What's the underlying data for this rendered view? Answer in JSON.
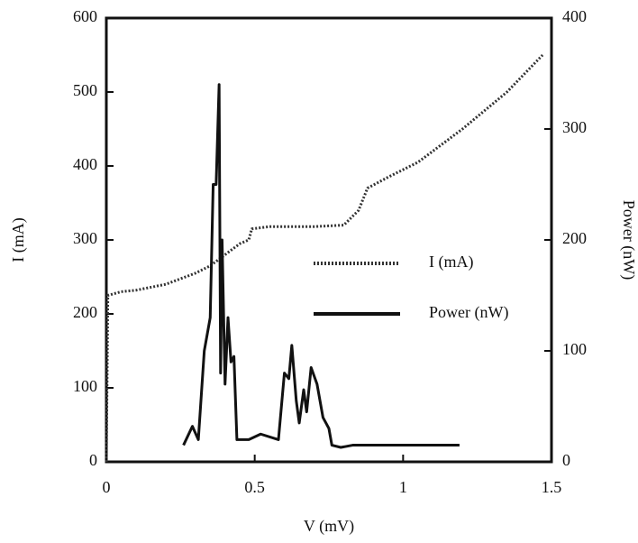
{
  "chart_data": {
    "type": "line",
    "xlabel": "V (mV)",
    "ylabel": "I (mA)",
    "y2label": "Power (nW)",
    "xlim": [
      0,
      1.5
    ],
    "xticks": [
      0,
      0.5,
      1,
      1.5
    ],
    "ylim": [
      0,
      600
    ],
    "yticks": [
      0,
      100,
      200,
      300,
      400,
      500,
      600
    ],
    "y2lim": [
      0,
      400
    ],
    "y2ticks": [
      0,
      100,
      200,
      300,
      400
    ],
    "legend": "center right",
    "series": [
      {
        "name": "I (mA)",
        "color": "#333333",
        "style": "dotted",
        "x": [
          0,
          0.005,
          0.05,
          0.1,
          0.2,
          0.3,
          0.35,
          0.4,
          0.45,
          0.48,
          0.49,
          0.55,
          0.7,
          0.8,
          0.85,
          0.88,
          0.95,
          1.05,
          1.2,
          1.35,
          1.47
        ],
        "values": [
          0,
          225,
          230,
          232,
          240,
          255,
          265,
          280,
          295,
          300,
          315,
          318,
          318,
          320,
          340,
          370,
          385,
          405,
          450,
          500,
          550
        ]
      },
      {
        "name": "Power (nW)",
        "color": "#111111",
        "style": "solid",
        "axis": "y2",
        "x": [
          0.26,
          0.29,
          0.31,
          0.33,
          0.35,
          0.36,
          0.37,
          0.38,
          0.385,
          0.39,
          0.4,
          0.41,
          0.42,
          0.43,
          0.44,
          0.48,
          0.52,
          0.58,
          0.6,
          0.615,
          0.625,
          0.64,
          0.65,
          0.665,
          0.675,
          0.69,
          0.71,
          0.73,
          0.75,
          0.76,
          0.79,
          0.83,
          1.19
        ],
        "values": [
          15,
          32,
          20,
          100,
          130,
          250,
          250,
          340,
          80,
          200,
          70,
          130,
          90,
          95,
          20,
          20,
          25,
          20,
          80,
          75,
          105,
          55,
          35,
          65,
          45,
          85,
          70,
          40,
          30,
          15,
          13,
          15,
          15
        ]
      }
    ]
  }
}
